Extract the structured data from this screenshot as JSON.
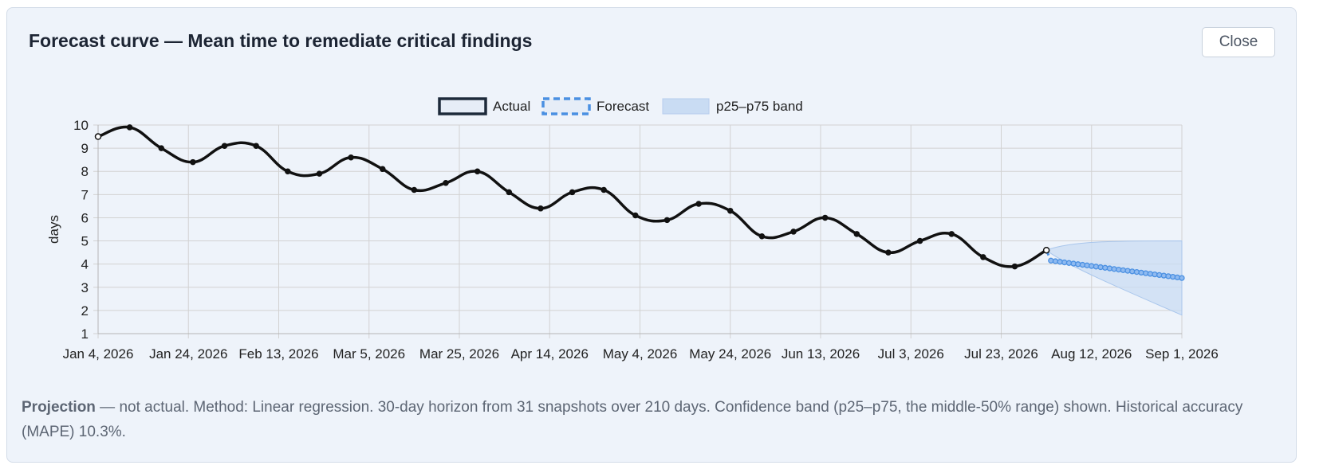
{
  "dialog": {
    "title": "Forecast curve — Mean time to remediate critical findings",
    "close_label": "Close"
  },
  "footnote": {
    "lead": "Projection",
    "text": " — not actual. Method: Linear regression. 30-day horizon from 31 snapshots over 210 days. Confidence band (p25–p75, the middle-50% range) shown. Historical accuracy (MAPE) 10.3%."
  },
  "colors": {
    "actual": "#111111",
    "forecast": "#4a90e2",
    "band_fill": "#c9dcf3",
    "grid": "#d2d2d2"
  },
  "chart_data": {
    "type": "line",
    "ylabel": "days",
    "y_ticks": [
      1,
      2,
      3,
      4,
      5,
      6,
      7,
      8,
      9,
      10
    ],
    "ylim": [
      1,
      10
    ],
    "x_tick_labels": [
      "Jan 4, 2026",
      "Jan 24, 2026",
      "Feb 13, 2026",
      "Mar 5, 2026",
      "Mar 25, 2026",
      "Apr 14, 2026",
      "May 4, 2026",
      "May 24, 2026",
      "Jun 13, 2026",
      "Jul 3, 2026",
      "Jul 23, 2026",
      "Aug 12, 2026",
      "Sep 1, 2026"
    ],
    "xlim": [
      "2026-01-04",
      "2026-09-01"
    ],
    "legend": [
      "Actual",
      "Forecast",
      "p25–p75 band"
    ],
    "legend_position": "top",
    "grid": true,
    "actual": {
      "name": "Actual",
      "x": [
        "2026-01-04",
        "2026-01-11",
        "2026-01-18",
        "2026-01-25",
        "2026-02-01",
        "2026-02-08",
        "2026-02-15",
        "2026-02-22",
        "2026-03-01",
        "2026-03-08",
        "2026-03-15",
        "2026-03-22",
        "2026-03-29",
        "2026-04-05",
        "2026-04-12",
        "2026-04-19",
        "2026-04-26",
        "2026-05-03",
        "2026-05-10",
        "2026-05-17",
        "2026-05-24",
        "2026-05-31",
        "2026-06-07",
        "2026-06-14",
        "2026-06-21",
        "2026-06-28",
        "2026-07-05",
        "2026-07-12",
        "2026-07-19",
        "2026-07-26",
        "2026-08-02"
      ],
      "values": [
        9.5,
        9.9,
        9.0,
        8.4,
        9.1,
        9.1,
        8.0,
        7.9,
        8.6,
        8.1,
        7.2,
        7.5,
        8.0,
        7.1,
        6.4,
        7.1,
        7.2,
        6.1,
        5.9,
        6.6,
        6.3,
        5.2,
        5.4,
        6.0,
        5.3,
        4.5,
        5.0,
        5.3,
        4.3,
        3.9,
        4.6
      ]
    },
    "forecast": {
      "name": "Forecast",
      "start": "2026-08-02",
      "end": "2026-09-01",
      "start_value": 4.6,
      "first_step_value": 4.15,
      "end_value": 3.4
    },
    "band": {
      "name": "p25–p75 band",
      "start_value": 4.6,
      "end_upper": 5.0,
      "end_lower": 1.8
    }
  }
}
